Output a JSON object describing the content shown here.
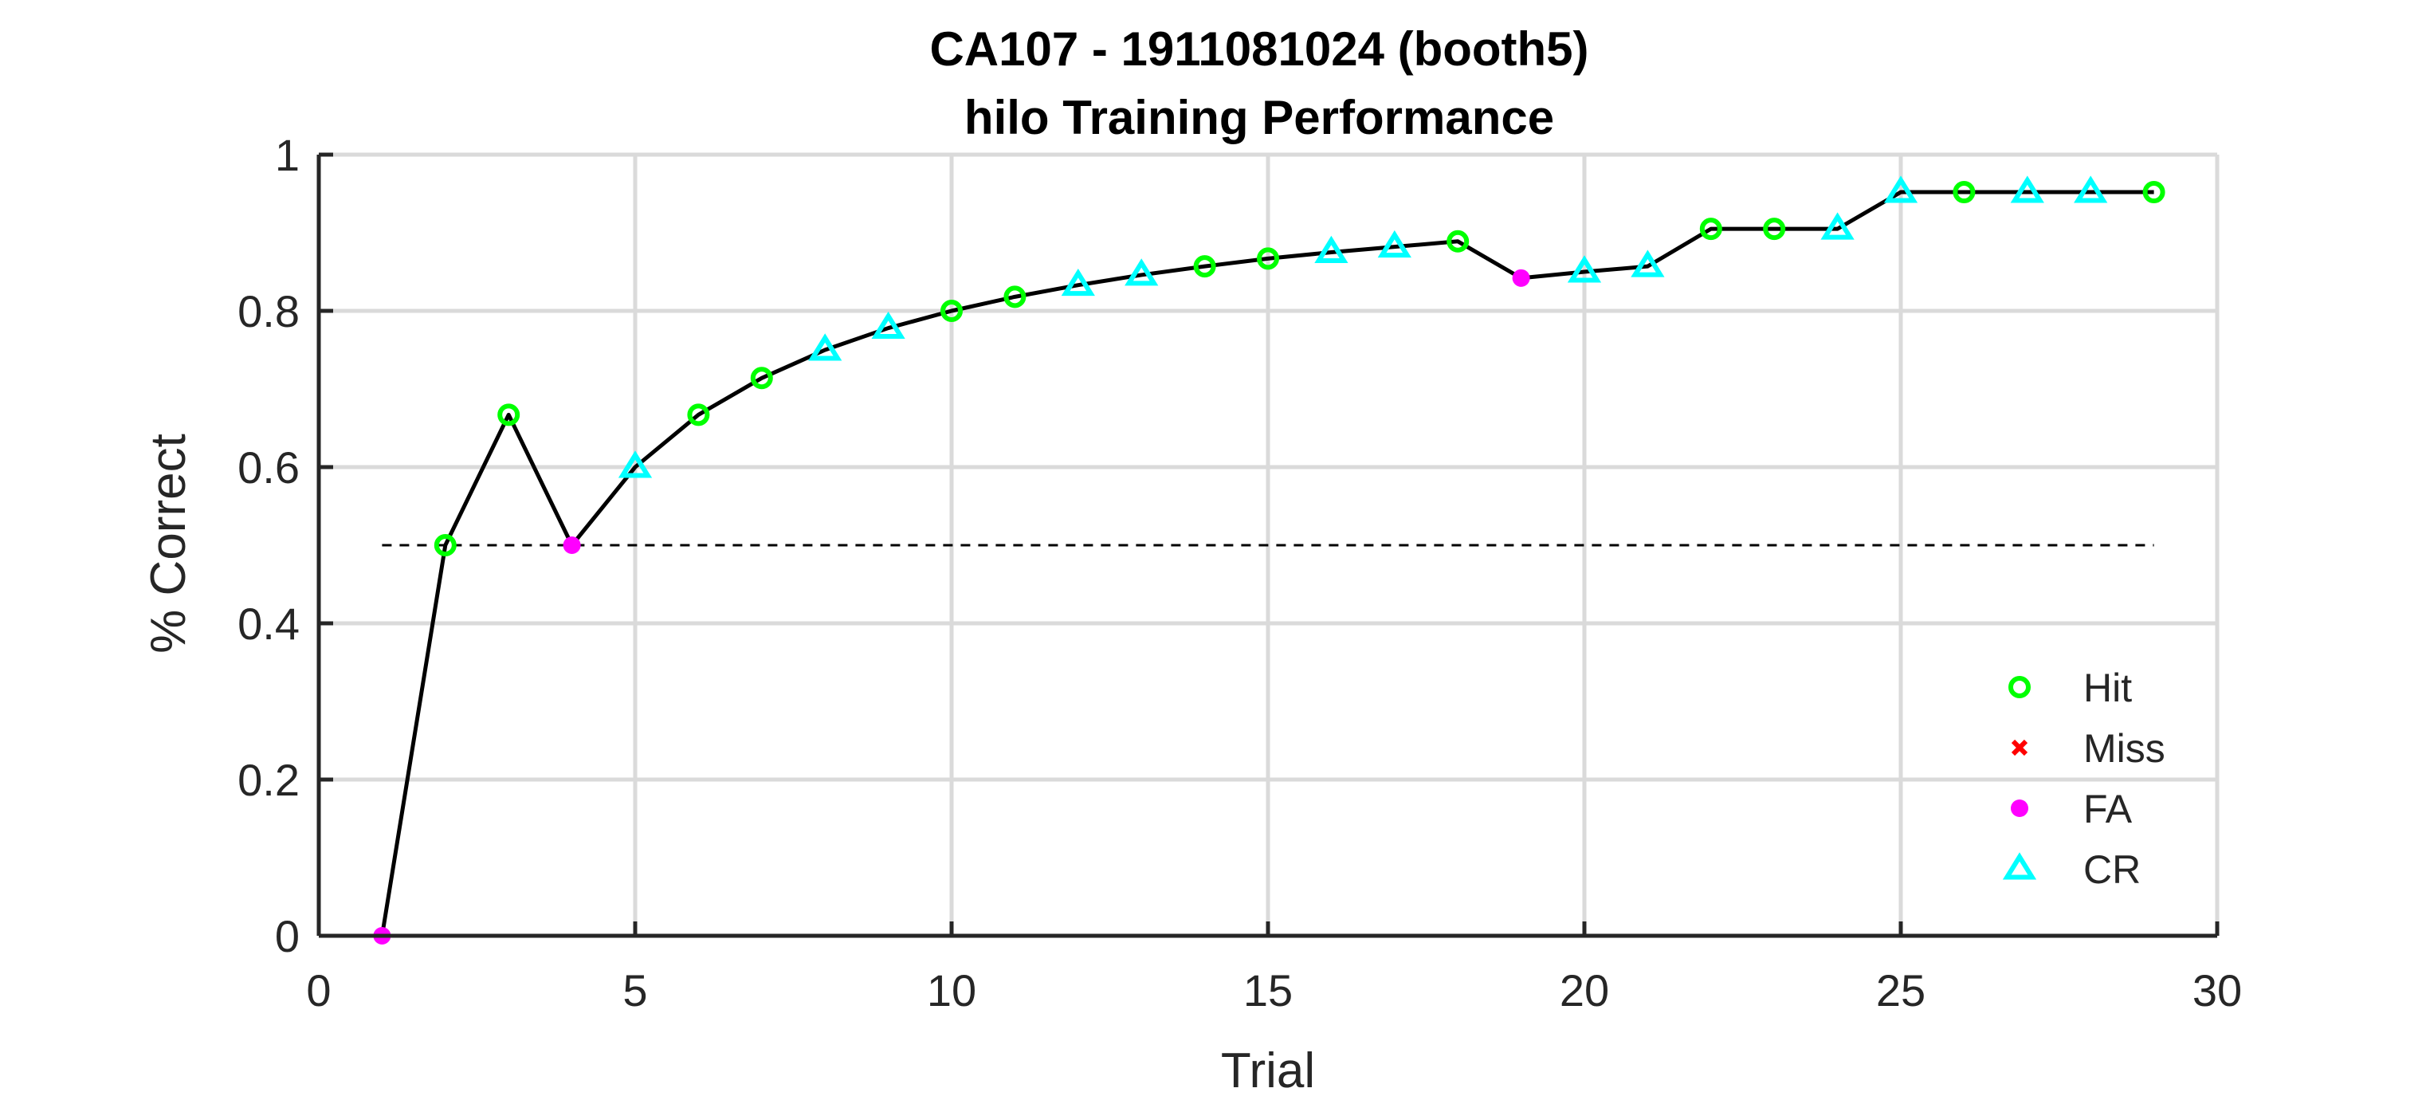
{
  "chart_data": {
    "type": "line",
    "title_line1": "CA107 - 1911081024 (booth5)",
    "title_line2": "hilo Training Performance",
    "xlabel": "Trial",
    "ylabel": "% Correct",
    "xlim": [
      0,
      30
    ],
    "ylim": [
      0,
      1
    ],
    "xticks": [
      "0",
      "5",
      "10",
      "15",
      "20",
      "25",
      "30"
    ],
    "xtick_values": [
      0,
      5,
      10,
      15,
      20,
      25,
      30
    ],
    "yticks": [
      "0",
      "0.2",
      "0.4",
      "0.6",
      "0.8",
      "1"
    ],
    "ytick_values": [
      0,
      0.2,
      0.4,
      0.6,
      0.8,
      1
    ],
    "grid": true,
    "chance_level": 0.5,
    "legend_position": "lower-right",
    "legend": [
      {
        "label": "Hit",
        "marker": "circle",
        "color": "#00ff00"
      },
      {
        "label": "Miss",
        "marker": "x",
        "color": "#ff0000"
      },
      {
        "label": "FA",
        "marker": "dot",
        "color": "#ff00ff"
      },
      {
        "label": "CR",
        "marker": "triangle",
        "color": "#00ffff"
      }
    ],
    "points": [
      {
        "trial": 1,
        "value": 0.0,
        "outcome": "FA"
      },
      {
        "trial": 2,
        "value": 0.5,
        "outcome": "Hit"
      },
      {
        "trial": 3,
        "value": 0.667,
        "outcome": "Hit"
      },
      {
        "trial": 4,
        "value": 0.5,
        "outcome": "FA"
      },
      {
        "trial": 5,
        "value": 0.6,
        "outcome": "CR"
      },
      {
        "trial": 6,
        "value": 0.667,
        "outcome": "Hit"
      },
      {
        "trial": 7,
        "value": 0.714,
        "outcome": "Hit"
      },
      {
        "trial": 8,
        "value": 0.75,
        "outcome": "CR"
      },
      {
        "trial": 9,
        "value": 0.778,
        "outcome": "CR"
      },
      {
        "trial": 10,
        "value": 0.8,
        "outcome": "Hit"
      },
      {
        "trial": 11,
        "value": 0.818,
        "outcome": "Hit"
      },
      {
        "trial": 12,
        "value": 0.833,
        "outcome": "CR"
      },
      {
        "trial": 13,
        "value": 0.846,
        "outcome": "CR"
      },
      {
        "trial": 14,
        "value": 0.857,
        "outcome": "Hit"
      },
      {
        "trial": 15,
        "value": 0.867,
        "outcome": "Hit"
      },
      {
        "trial": 16,
        "value": 0.875,
        "outcome": "CR"
      },
      {
        "trial": 17,
        "value": 0.882,
        "outcome": "CR"
      },
      {
        "trial": 18,
        "value": 0.889,
        "outcome": "Hit"
      },
      {
        "trial": 19,
        "value": 0.842,
        "outcome": "FA"
      },
      {
        "trial": 20,
        "value": 0.85,
        "outcome": "CR"
      },
      {
        "trial": 21,
        "value": 0.857,
        "outcome": "CR"
      },
      {
        "trial": 22,
        "value": 0.905,
        "outcome": "Hit"
      },
      {
        "trial": 23,
        "value": 0.905,
        "outcome": "Hit"
      },
      {
        "trial": 24,
        "value": 0.905,
        "outcome": "CR"
      },
      {
        "trial": 25,
        "value": 0.952,
        "outcome": "CR"
      },
      {
        "trial": 26,
        "value": 0.952,
        "outcome": "Hit"
      },
      {
        "trial": 27,
        "value": 0.952,
        "outcome": "CR"
      },
      {
        "trial": 28,
        "value": 0.952,
        "outcome": "CR"
      },
      {
        "trial": 29,
        "value": 0.952,
        "outcome": "Hit"
      }
    ]
  }
}
